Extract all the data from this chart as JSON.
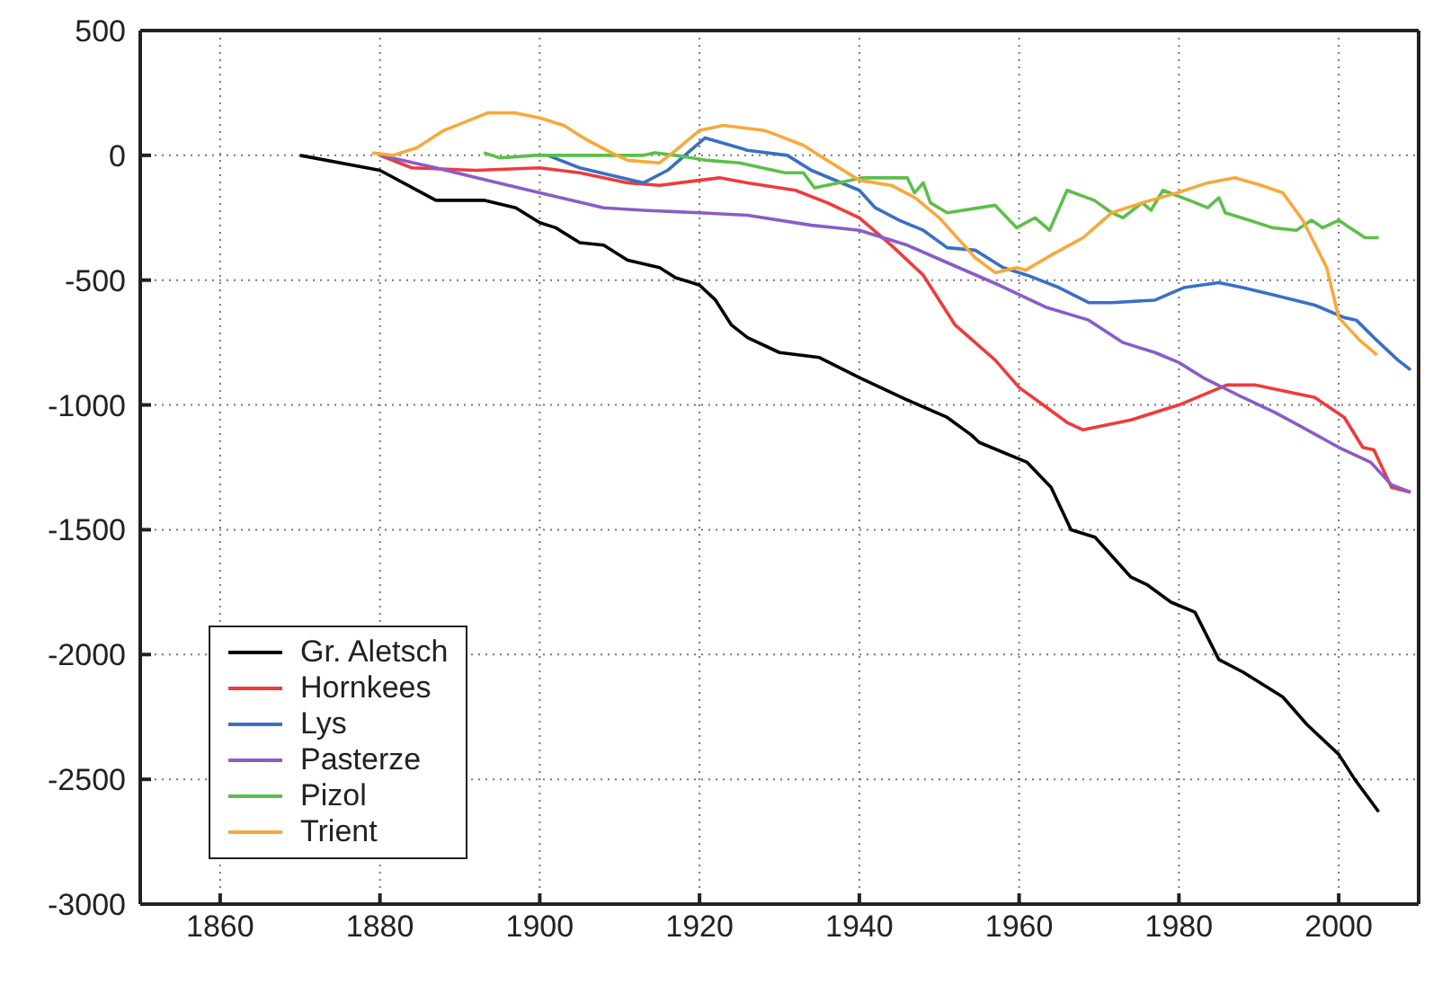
{
  "chart_data": {
    "type": "line",
    "xlim": [
      1850,
      2010
    ],
    "xticks": [
      1860,
      1880,
      1900,
      1920,
      1940,
      1960,
      1980,
      2000
    ],
    "ylim": [
      -3000,
      500
    ],
    "yticks": [
      -3000,
      -2500,
      -2000,
      -1500,
      -1000,
      -500,
      0,
      500
    ],
    "grid": true,
    "legend": "bottom left",
    "line_style": "solid",
    "marker": "none",
    "series": [
      {
        "name": "Gr. Aletsch",
        "color": "#000000",
        "x": [
          1870,
          1880,
          1887,
          1893,
          1897,
          1900,
          1902,
          1905,
          1908,
          1911,
          1915,
          1917,
          1920,
          1922,
          1924,
          1926,
          1930,
          1935,
          1940,
          1946,
          1951,
          1954,
          1955,
          1961,
          1964,
          1966.5,
          1969.5,
          1974,
          1976,
          1979,
          1982,
          1985,
          1988,
          1993,
          1996,
          2000,
          2002,
          2005
        ],
        "values": [
          0,
          -60,
          -180,
          -180,
          -210,
          -270,
          -290,
          -350,
          -360,
          -420,
          -450,
          -490,
          -520,
          -580,
          -680,
          -730,
          -790,
          -810,
          -890,
          -980,
          -1050,
          -1120,
          -1150,
          -1230,
          -1330,
          -1500,
          -1530,
          -1690,
          -1720,
          -1790,
          -1830,
          -2020,
          -2070,
          -2170,
          -2280,
          -2400,
          -2500,
          -2630
        ]
      },
      {
        "name": "Hornkees",
        "color": "#ee3b3b",
        "x": [
          1880,
          1884,
          1892,
          1900,
          1905,
          1911,
          1915,
          1922.5,
          1926,
          1932,
          1936,
          1940,
          1944,
          1948,
          1952,
          1957,
          1960,
          1963,
          1966,
          1968,
          1974,
          1980,
          1986,
          1989.5,
          1997,
          2000.7,
          2003,
          2004.4,
          2006.6,
          2009
        ],
        "values": [
          0,
          -50,
          -60,
          -50,
          -70,
          -110,
          -120,
          -90,
          -110,
          -140,
          -190,
          -250,
          -360,
          -480,
          -680,
          -820,
          -930,
          -1000,
          -1070,
          -1100,
          -1060,
          -1000,
          -920,
          -920,
          -970,
          -1050,
          -1170,
          -1180,
          -1330,
          -1350
        ]
      },
      {
        "name": "Lys",
        "color": "#3a6fc4",
        "x": [
          1901,
          1905,
          1913,
          1916,
          1920.7,
          1925,
          1926,
          1931,
          1934,
          1940,
          1942,
          1945,
          1948,
          1951,
          1954.5,
          1958,
          1961,
          1965,
          1968.7,
          1971.6,
          1977,
          1980.6,
          1985,
          1988,
          1992,
          1997,
          2000.7,
          2002.2,
          2004.4,
          2007.4,
          2009
        ],
        "values": [
          0,
          -50,
          -110,
          -60,
          70,
          30,
          20,
          0,
          -60,
          -140,
          -210,
          -260,
          -300,
          -370,
          -380,
          -450,
          -480,
          -530,
          -590,
          -590,
          -580,
          -530,
          -510,
          -530,
          -560,
          -600,
          -650,
          -660,
          -730,
          -820,
          -860
        ]
      },
      {
        "name": "Pasterze",
        "color": "#8a5cc8",
        "x": [
          1880,
          1887,
          1893.5,
          1900,
          1908,
          1913,
          1920,
          1926,
          1934,
          1940,
          1946,
          1951,
          1957.5,
          1963.5,
          1968.7,
          1973,
          1977,
          1980,
          1983,
          1988,
          1992,
          1995.5,
          2000,
          2004,
          2006.6,
          2009
        ],
        "values": [
          0,
          -50,
          -100,
          -150,
          -210,
          -220,
          -230,
          -240,
          -280,
          -300,
          -360,
          -430,
          -520,
          -610,
          -660,
          -750,
          -790,
          -830,
          -890,
          -970,
          -1030,
          -1090,
          -1170,
          -1230,
          -1320,
          -1350
        ]
      },
      {
        "name": "Pizol",
        "color": "#5cbf4a",
        "x": [
          1893,
          1895,
          1899.5,
          1905,
          1913,
          1914.4,
          1917,
          1921,
          1925,
          1930.7,
          1933,
          1934.4,
          1937.4,
          1940.4,
          1946,
          1946.9,
          1948,
          1948.9,
          1951,
          1957,
          1959.7,
          1962,
          1963.8,
          1966,
          1969.4,
          1971.6,
          1973,
          1975.4,
          1976.5,
          1978,
          1981.3,
          1983.6,
          1985,
          1985.8,
          1988.8,
          1991.7,
          1994.7,
          1996.6,
          1998,
          2000,
          2001.4,
          2003.3,
          2005
        ],
        "values": [
          10,
          -10,
          0,
          0,
          0,
          10,
          0,
          -20,
          -30,
          -70,
          -70,
          -130,
          -110,
          -90,
          -90,
          -150,
          -110,
          -190,
          -230,
          -200,
          -290,
          -250,
          -300,
          -140,
          -180,
          -230,
          -250,
          -190,
          -220,
          -140,
          -180,
          -210,
          -170,
          -230,
          -260,
          -290,
          -300,
          -260,
          -290,
          -260,
          -290,
          -330,
          -330
        ]
      },
      {
        "name": "Trient",
        "color": "#f9a83a",
        "x": [
          1879,
          1881.6,
          1884.6,
          1888,
          1893.5,
          1897,
          1900,
          1903,
          1906,
          1909,
          1911,
          1915,
          1917,
          1920,
          1923,
          1928,
          1929,
          1933,
          1936,
          1940,
          1944,
          1947,
          1950,
          1954.5,
          1957,
          1959.7,
          1960.8,
          1964,
          1968,
          1971.6,
          1975.4,
          1979.8,
          1983.6,
          1987,
          1990.3,
          1993,
          1995.5,
          1998.5,
          2000,
          2002.6,
          2004.8
        ],
        "values": [
          10,
          0,
          30,
          100,
          170,
          170,
          150,
          120,
          60,
          10,
          -20,
          -30,
          20,
          100,
          120,
          100,
          90,
          40,
          -20,
          -100,
          -120,
          -170,
          -250,
          -410,
          -470,
          -450,
          -460,
          -400,
          -330,
          -230,
          -190,
          -150,
          -110,
          -90,
          -120,
          -150,
          -260,
          -450,
          -650,
          -740,
          -800
        ]
      }
    ]
  }
}
